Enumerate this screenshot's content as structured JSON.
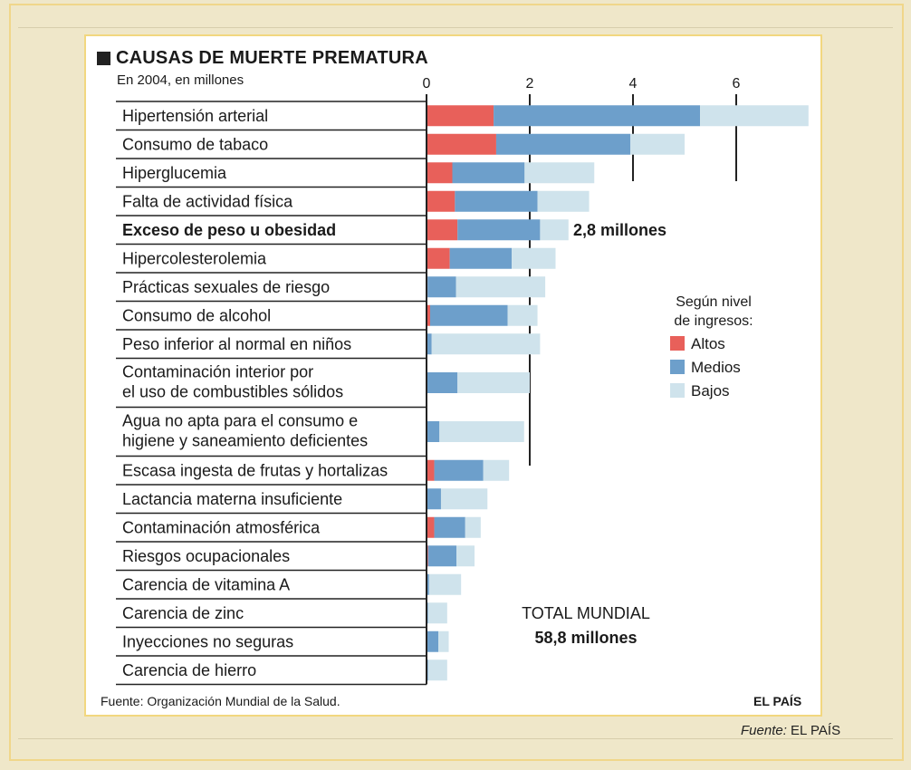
{
  "chart": {
    "title": "CAUSAS DE MUERTE PREMATURA",
    "subtitle": "En 2004, en millones",
    "source": "Fuente: Organización Mundial de la Salud.",
    "brand": "EL PAÍS"
  },
  "caption": {
    "prefix": "Fuente:",
    "text": " EL PAÍS"
  },
  "colors": {
    "altos": "#e8605a",
    "medios": "#6d9fcb",
    "bajos": "#cfe3ec"
  },
  "chart_data": {
    "type": "bar",
    "orientation": "horizontal",
    "stacked": true,
    "title": "CAUSAS DE MUERTE PREMATURA",
    "subtitle": "En 2004, en millones",
    "xlim": [
      0,
      7.3
    ],
    "xticks": [
      0,
      2,
      4,
      6
    ],
    "grid": false,
    "legend": {
      "title": "Según nivel de ingresos:",
      "position": "right"
    },
    "categories": [
      "Hipertensión arterial",
      "Consumo de tabaco",
      "Hiperglucemia",
      "Falta de actividad física",
      "Exceso de peso u obesidad",
      "Hipercolesterolemia",
      "Prácticas sexuales de riesgo",
      "Consumo de alcohol",
      "Peso inferior al normal en niños",
      "Contaminación interior por el uso de combustibles sólidos",
      "Agua no apta para el consumo e higiene y saneamiento deficientes",
      "Escasa ingesta de frutas y hortalizas",
      "Lactancia materna insuficiente",
      "Contaminación atmosférica",
      "Riesgos ocupacionales",
      "Carencia de vitamina A",
      "Carencia de zinc",
      "Inyecciones no seguras",
      "Carencia de hierro"
    ],
    "category_lines": [
      [
        "Hipertensión arterial"
      ],
      [
        "Consumo de tabaco"
      ],
      [
        "Hiperglucemia"
      ],
      [
        "Falta de actividad física"
      ],
      [
        "Exceso de peso u obesidad"
      ],
      [
        "Hipercolesterolemia"
      ],
      [
        "Prácticas sexuales de riesgo"
      ],
      [
        "Consumo de alcohol"
      ],
      [
        "Peso inferior al normal en niños"
      ],
      [
        "Contaminación interior por",
        "el uso de combustibles sólidos"
      ],
      [
        "Agua no apta para el consumo e",
        "higiene y saneamiento deficientes"
      ],
      [
        "Escasa ingesta de frutas y hortalizas"
      ],
      [
        "Lactancia materna insuficiente"
      ],
      [
        "Contaminación atmosférica"
      ],
      [
        "Riesgos ocupacionales"
      ],
      [
        "Carencia de vitamina A"
      ],
      [
        "Carencia de zinc"
      ],
      [
        "Inyecciones no seguras"
      ],
      [
        "Carencia de hierro"
      ]
    ],
    "bold_category": "Exceso de peso u obesidad",
    "series": [
      {
        "name": "Altos",
        "values": [
          1.3,
          1.35,
          0.5,
          0.55,
          0.6,
          0.45,
          0.02,
          0.07,
          0.0,
          0.0,
          0.0,
          0.15,
          0.0,
          0.15,
          0.03,
          0.0,
          0.0,
          0.0,
          0.0
        ]
      },
      {
        "name": "Medios",
        "values": [
          4.0,
          2.6,
          1.4,
          1.6,
          1.6,
          1.2,
          0.55,
          1.5,
          0.1,
          0.6,
          0.25,
          0.95,
          0.28,
          0.6,
          0.55,
          0.05,
          0.03,
          0.23,
          0.03
        ]
      },
      {
        "name": "Bajos",
        "values": [
          2.1,
          1.05,
          1.35,
          1.0,
          0.55,
          0.85,
          1.73,
          0.58,
          2.1,
          1.4,
          1.64,
          0.5,
          0.9,
          0.3,
          0.35,
          0.62,
          0.37,
          0.2,
          0.37
        ]
      }
    ],
    "annotation": {
      "category": "Exceso de peso u obesidad",
      "text": "2,8 millones"
    },
    "total": {
      "line1": "TOTAL MUNDIAL",
      "line2": "58,8 millones"
    }
  }
}
